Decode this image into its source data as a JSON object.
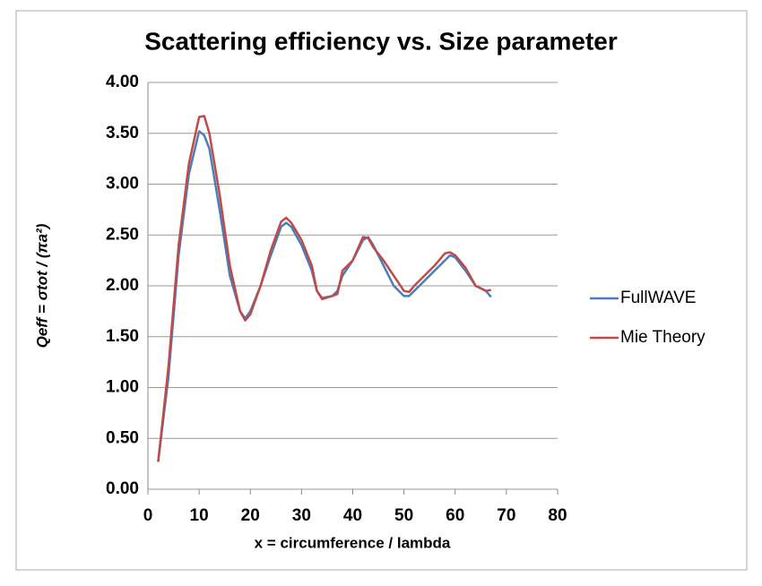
{
  "chart_data": {
    "type": "line",
    "title": "Scattering efficiency vs. Size parameter",
    "x_label": "x = circumference / lambda",
    "y_label": "Qeff = σtot  / (πa²)",
    "x": [
      2,
      4,
      6,
      8,
      10,
      11,
      12,
      14,
      16,
      18,
      19,
      20,
      22,
      24,
      26,
      27,
      28,
      30,
      32,
      33,
      34,
      36,
      37,
      38,
      40,
      42,
      43,
      44,
      46,
      48,
      50,
      51,
      52,
      54,
      56,
      58,
      59,
      60,
      62,
      64,
      66,
      67
    ],
    "series": [
      {
        "name": "FullWAVE",
        "color": "#4a7ebb",
        "values": [
          0.27,
          1.1,
          2.3,
          3.1,
          3.52,
          3.48,
          3.35,
          2.75,
          2.1,
          1.75,
          1.68,
          1.75,
          2.0,
          2.3,
          2.58,
          2.62,
          2.58,
          2.4,
          2.15,
          1.95,
          1.88,
          1.9,
          1.95,
          2.1,
          2.25,
          2.45,
          2.48,
          2.4,
          2.2,
          2.0,
          1.9,
          1.9,
          1.95,
          2.05,
          2.15,
          2.25,
          2.3,
          2.28,
          2.15,
          2.0,
          1.95,
          1.89
        ]
      },
      {
        "name": "Mie Theory",
        "color": "#be4b48",
        "values": [
          0.27,
          1.2,
          2.4,
          3.2,
          3.66,
          3.67,
          3.5,
          2.9,
          2.2,
          1.75,
          1.66,
          1.72,
          2.0,
          2.35,
          2.63,
          2.67,
          2.62,
          2.45,
          2.2,
          1.95,
          1.87,
          1.9,
          1.92,
          2.15,
          2.25,
          2.48,
          2.47,
          2.38,
          2.25,
          2.1,
          1.95,
          1.94,
          2.0,
          2.1,
          2.2,
          2.32,
          2.33,
          2.3,
          2.18,
          2.0,
          1.95,
          1.96
        ]
      }
    ],
    "xlim": [
      0,
      80
    ],
    "xticks": [
      0,
      10,
      20,
      30,
      40,
      50,
      60,
      70,
      80
    ],
    "ylim": [
      0,
      4
    ],
    "yticks": [
      {
        "value": 0,
        "label": "0.00"
      },
      {
        "value": 0.5,
        "label": "0.50"
      },
      {
        "value": 1,
        "label": "1.00"
      },
      {
        "value": 1.5,
        "label": "1.50"
      },
      {
        "value": 2,
        "label": "2.00"
      },
      {
        "value": 2.5,
        "label": "2.50"
      },
      {
        "value": 3,
        "label": "3.00"
      },
      {
        "value": 3.5,
        "label": "3.50"
      },
      {
        "value": 4,
        "label": "4.00"
      }
    ],
    "grid": true,
    "legend": "right"
  }
}
